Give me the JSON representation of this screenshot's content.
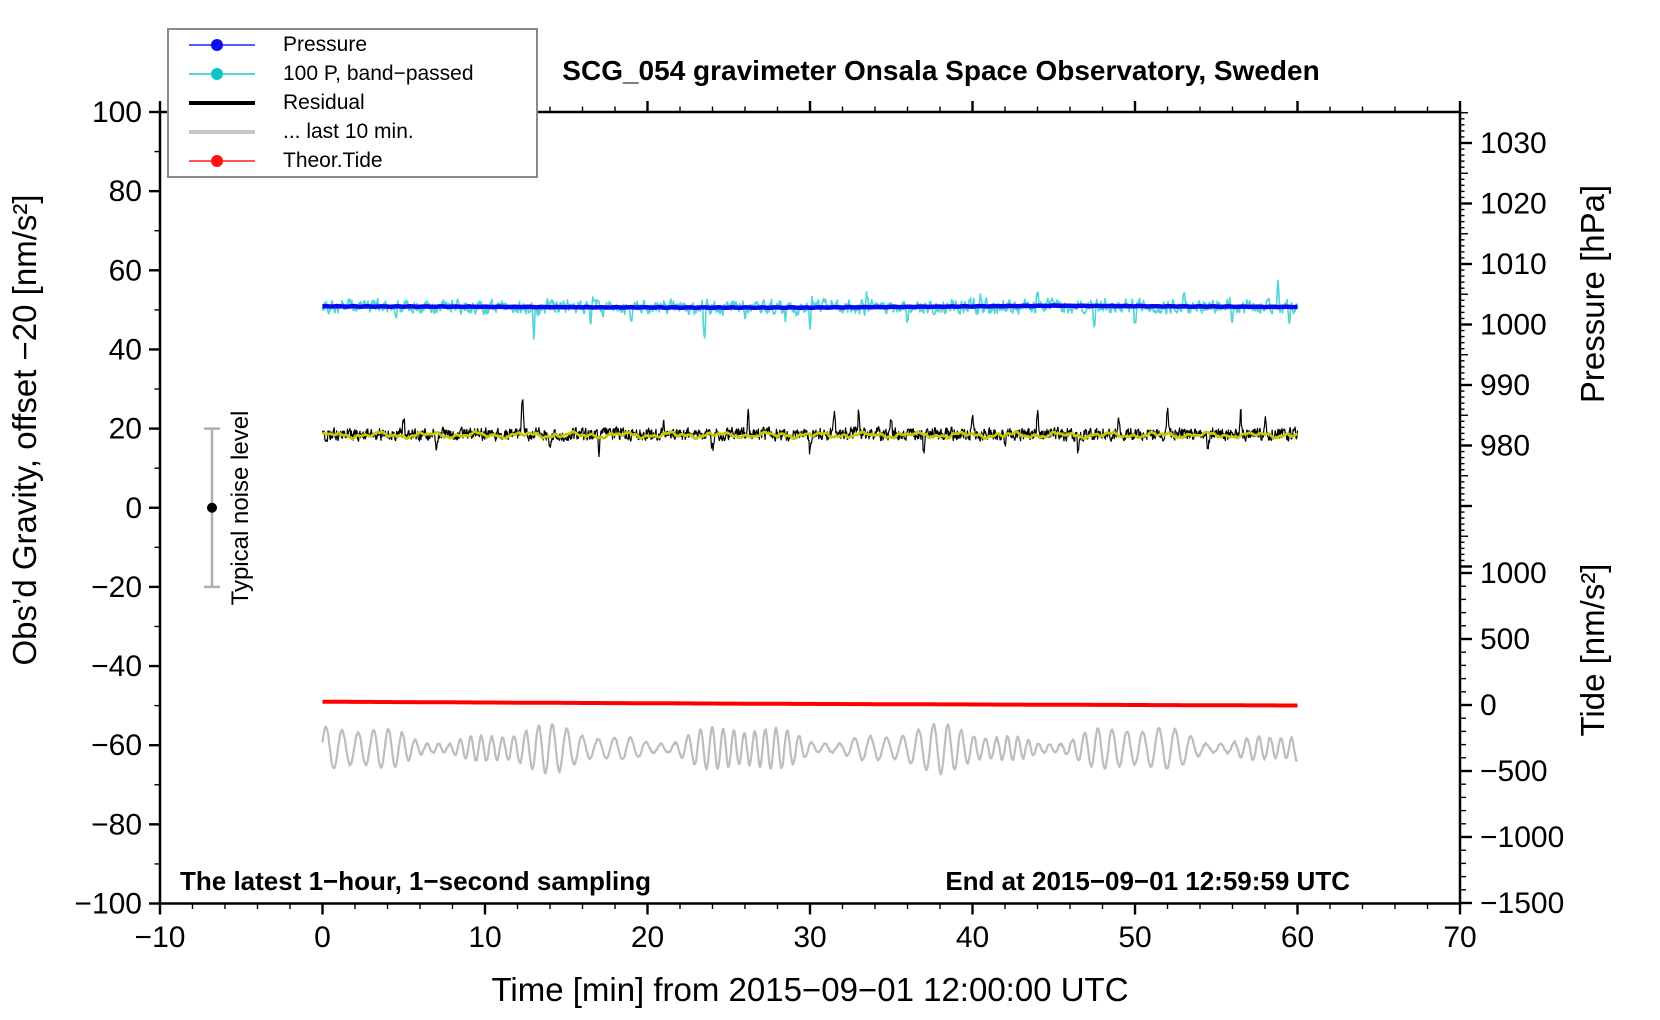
{
  "title": "SCG_054 gravimeter Onsala Space Observatory, Sweden",
  "legend": {
    "items": [
      {
        "label": "Pressure",
        "line_color": "#5a5af5",
        "dot": true,
        "dot_color": "#0d0dee",
        "line_width": 2
      },
      {
        "label": "100 P, band−passed",
        "line_color": "#55d8d8",
        "dot": true,
        "dot_color": "#10c4c4",
        "line_width": 2
      },
      {
        "label": "Residual",
        "line_color": "#000000",
        "dot": false,
        "dot_color": "",
        "line_width": 4
      },
      {
        "label": "... last 10 min.",
        "line_color": "#c6c6c6",
        "dot": false,
        "dot_color": "",
        "line_width": 4
      },
      {
        "label": "Theor.Tide",
        "line_color": "#ff5555",
        "dot": true,
        "dot_color": "#ff1111",
        "line_width": 2
      }
    ]
  },
  "annotations": {
    "sampling": "The latest 1−hour, 1−second sampling",
    "end_time": "End at 2015−09−01 12:59:59 UTC",
    "noise_bar_label": "Typical noise level"
  },
  "axes": {
    "x": {
      "label": "Time [min] from 2015−09−01 12:00:00 UTC",
      "range": [
        -10,
        70
      ],
      "minor_step": 2,
      "ticks": [
        {
          "v": -10,
          "label": "−10"
        },
        {
          "v": 0,
          "label": "0"
        },
        {
          "v": 10,
          "label": "10"
        },
        {
          "v": 20,
          "label": "20"
        },
        {
          "v": 30,
          "label": "30"
        },
        {
          "v": 40,
          "label": "40"
        },
        {
          "v": 50,
          "label": "50"
        },
        {
          "v": 60,
          "label": "60"
        },
        {
          "v": 70,
          "label": "70"
        }
      ]
    },
    "y_left": {
      "label": "Obs’d Gravity, offset −20 [nm/s²]",
      "range": [
        -100,
        100
      ],
      "minor_step": 10,
      "ticks": [
        {
          "v": 100,
          "label": "100"
        },
        {
          "v": 80,
          "label": "80"
        },
        {
          "v": 60,
          "label": "60"
        },
        {
          "v": 40,
          "label": "40"
        },
        {
          "v": 20,
          "label": "20"
        },
        {
          "v": 0,
          "label": "0"
        },
        {
          "v": -20,
          "label": "−20"
        },
        {
          "v": -40,
          "label": "−40"
        },
        {
          "v": -60,
          "label": "−60"
        },
        {
          "v": -80,
          "label": "−80"
        },
        {
          "v": -100,
          "label": "−100"
        }
      ]
    },
    "y_right_pressure": {
      "label": "Pressure [hPa]",
      "minor_step": 1,
      "minor_range": [
        959,
        1035
      ],
      "ticks": [
        {
          "v": 1030,
          "label": "1030"
        },
        {
          "v": 1020,
          "label": "1020"
        },
        {
          "v": 1010,
          "label": "1010"
        },
        {
          "v": 1000,
          "label": "1000"
        },
        {
          "v": 990,
          "label": "990"
        },
        {
          "v": 980,
          "label": "980"
        }
      ]
    },
    "y_right_tide": {
      "label": "Tide [nm/s²]",
      "minor_step": 100,
      "minor_range": [
        -1500,
        1000
      ],
      "ticks": [
        {
          "v": 1000,
          "label": "1000"
        },
        {
          "v": 500,
          "label": "500"
        },
        {
          "v": 0,
          "label": "0"
        },
        {
          "v": -500,
          "label": "−500"
        },
        {
          "v": -1000,
          "label": "−1000"
        },
        {
          "v": -1500,
          "label": "−1500"
        }
      ]
    }
  },
  "chart_data": {
    "type": "line",
    "title": "SCG_054 gravimeter Onsala Space Observatory, Sweden",
    "x_units": "min",
    "data_time_range": [
      0,
      60
    ],
    "sampling": "1-second",
    "series": [
      {
        "name": "Pressure",
        "axis": "pressure_hPa",
        "color": "#0a0aee",
        "width": 4.5,
        "control_points_hpa": [
          [
            0,
            1003.0
          ],
          [
            8,
            1002.95
          ],
          [
            16,
            1002.85
          ],
          [
            24,
            1002.8
          ],
          [
            30,
            1002.8
          ],
          [
            38,
            1002.95
          ],
          [
            45,
            1003.1
          ],
          [
            52,
            1003.0
          ],
          [
            60,
            1002.9
          ]
        ]
      },
      {
        "name": "100 P, band−passed",
        "axis": "left_nms2",
        "color": "#4fd6d6",
        "width": 1.6,
        "baseline": "follows Pressure (≈50.8 on left axis)",
        "noise_std_nms2": 1.5,
        "spikes": [
          [
            4.5,
            -3.5
          ],
          [
            8,
            2.5
          ],
          [
            13,
            -7.5
          ],
          [
            16.5,
            -4
          ],
          [
            19,
            -4.5
          ],
          [
            23.5,
            -8.5
          ],
          [
            26,
            -4
          ],
          [
            28.5,
            -3
          ],
          [
            30,
            -5.5
          ],
          [
            33.5,
            3.5
          ],
          [
            36,
            -4.5
          ],
          [
            40.5,
            3
          ],
          [
            44,
            3.5
          ],
          [
            47.5,
            -4
          ],
          [
            50,
            -4.5
          ],
          [
            53,
            3
          ],
          [
            56,
            -3.5
          ],
          [
            58.8,
            7.5
          ],
          [
            59.5,
            -5
          ]
        ]
      },
      {
        "name": "Residual",
        "axis": "left_nms2",
        "color": "#000000",
        "width": 1.2,
        "baseline_nms2": 18.6,
        "noise_std_nms2": 1.3,
        "spikes": [
          [
            5,
            4
          ],
          [
            7,
            -4
          ],
          [
            12.3,
            9.2
          ],
          [
            14,
            -4
          ],
          [
            17,
            -4.5
          ],
          [
            21,
            4.2
          ],
          [
            24,
            -4
          ],
          [
            26.2,
            5.5
          ],
          [
            30,
            -4.8
          ],
          [
            31.5,
            4
          ],
          [
            33,
            6.5
          ],
          [
            35,
            5
          ],
          [
            37,
            -4.5
          ],
          [
            40,
            4.2
          ],
          [
            42,
            -3.8
          ],
          [
            44,
            5.5
          ],
          [
            46.5,
            -4.5
          ],
          [
            49,
            4.2
          ],
          [
            52,
            6.8
          ],
          [
            54.5,
            -4
          ],
          [
            56.5,
            5
          ],
          [
            58,
            4.6
          ]
        ]
      },
      {
        "name": "Residual smoothed",
        "axis": "left_nms2",
        "color": "#c8c800",
        "width": 2.8,
        "baseline_nms2": 18.35,
        "amplitude_nms2": 0.6
      },
      {
        "name": "Theor.Tide",
        "axis": "tide_nms2",
        "color": "#ff0000",
        "width": 4,
        "control_points_tide": [
          [
            0,
            25
          ],
          [
            15,
            16
          ],
          [
            30,
            8
          ],
          [
            45,
            2
          ],
          [
            60,
            -4
          ]
        ]
      },
      {
        "name": "... last 10 min.",
        "axis": "left_nms2",
        "color": "#bdbdbd",
        "width": 2.2,
        "baseline_nms2": -60.8,
        "amplitude_nms2": [
          2,
          6.5
        ],
        "quasi_period_min": 0.82
      }
    ],
    "noise_bar": {
      "t_min": -6.8,
      "center_nms2": 0,
      "half_height_nms2": 20
    }
  }
}
